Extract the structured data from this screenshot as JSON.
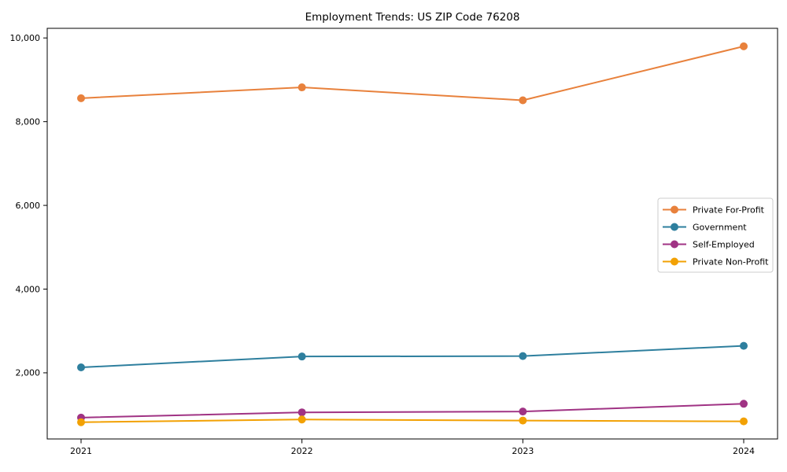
{
  "figure": {
    "background": "#ffffff",
    "axes_edge_color": "#000000"
  },
  "chart_data": {
    "type": "line",
    "title": "Employment Trends: US ZIP Code 76208",
    "xlabel": "",
    "ylabel": "",
    "x": [
      "2021",
      "2022",
      "2023",
      "2024"
    ],
    "ylim": [
      420,
      10230
    ],
    "yticks": [
      2000,
      4000,
      6000,
      8000,
      10000
    ],
    "ytick_labels": [
      "2,000",
      "4,000",
      "6,000",
      "8,000",
      "10,000"
    ],
    "grid": false,
    "marker": "o",
    "legend": {
      "position": "center-right",
      "border_color": "#cccccc",
      "background": "#ffffff"
    },
    "series": [
      {
        "name": "Private For-Profit",
        "color": "#e8813c",
        "values": [
          8560,
          8820,
          8510,
          9800
        ]
      },
      {
        "name": "Government",
        "color": "#2e7f9e",
        "values": [
          2130,
          2390,
          2400,
          2645
        ]
      },
      {
        "name": "Self-Employed",
        "color": "#a03384",
        "values": [
          930,
          1055,
          1075,
          1260
        ]
      },
      {
        "name": "Private Non-Profit",
        "color": "#f2a104",
        "values": [
          820,
          885,
          860,
          840
        ]
      }
    ]
  }
}
